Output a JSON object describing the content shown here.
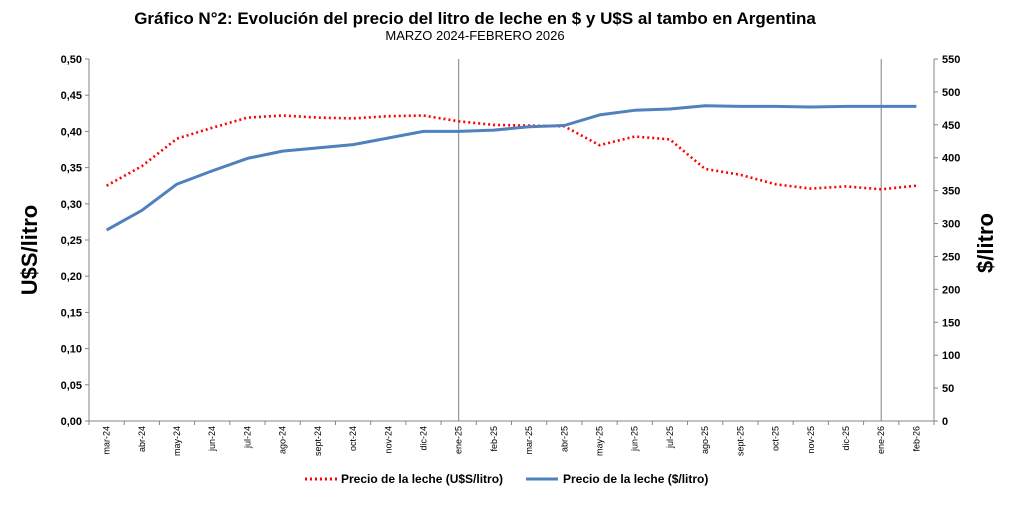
{
  "chart_data": {
    "type": "line",
    "title": "Gráfico N°2: Evolución del precio del litro de leche en $ y U$S al tambo en Argentina",
    "subtitle": "MARZO 2024-FEBRERO 2026",
    "ylabel_left": "U$S/litro",
    "ylabel_right": "$/litro",
    "ylim_left": [
      0,
      0.5
    ],
    "ylim_right": [
      0,
      550
    ],
    "yticks_left": [
      "0,00",
      "0,05",
      "0,10",
      "0,15",
      "0,20",
      "0,25",
      "0,30",
      "0,35",
      "0,40",
      "0,45",
      "0,50"
    ],
    "yticks_right": [
      "0",
      "50",
      "100",
      "150",
      "200",
      "250",
      "300",
      "350",
      "400",
      "450",
      "500",
      "550"
    ],
    "categories": [
      "mar-24",
      "abr-24",
      "may-24",
      "jun-24",
      "jul-24",
      "ago-24",
      "sept-24",
      "oct-24",
      "nov-24",
      "dic-24",
      "ene-25",
      "feb-25",
      "mar-25",
      "abr-25",
      "may-25",
      "jun-25",
      "jul-25",
      "ago-25",
      "sept-25",
      "oct-25",
      "nov-25",
      "dic-25",
      "ene-26",
      "feb-26"
    ],
    "series": [
      {
        "name": "Precio de la leche (U$S/litro)",
        "axis": "left",
        "color": "#ff0000",
        "style": "dotted",
        "values": [
          0.325,
          0.352,
          0.39,
          0.405,
          0.419,
          0.422,
          0.419,
          0.418,
          0.421,
          0.422,
          0.414,
          0.409,
          0.408,
          0.407,
          0.381,
          0.393,
          0.389,
          0.348,
          0.34,
          0.327,
          0.321,
          0.324,
          0.32,
          0.325
        ]
      },
      {
        "name": "Precio de la leche ($/litro)",
        "axis": "right",
        "color": "#4f81bd",
        "style": "solid",
        "values": [
          290,
          320,
          360,
          380,
          399,
          410,
          415,
          420,
          430,
          440,
          440,
          442,
          447,
          449,
          465,
          472,
          474,
          479,
          478,
          478,
          477,
          478,
          478,
          478
        ]
      }
    ],
    "vertical_markers": [
      "ene-25",
      "ene-26"
    ],
    "legend_position": "bottom",
    "grid": false
  }
}
